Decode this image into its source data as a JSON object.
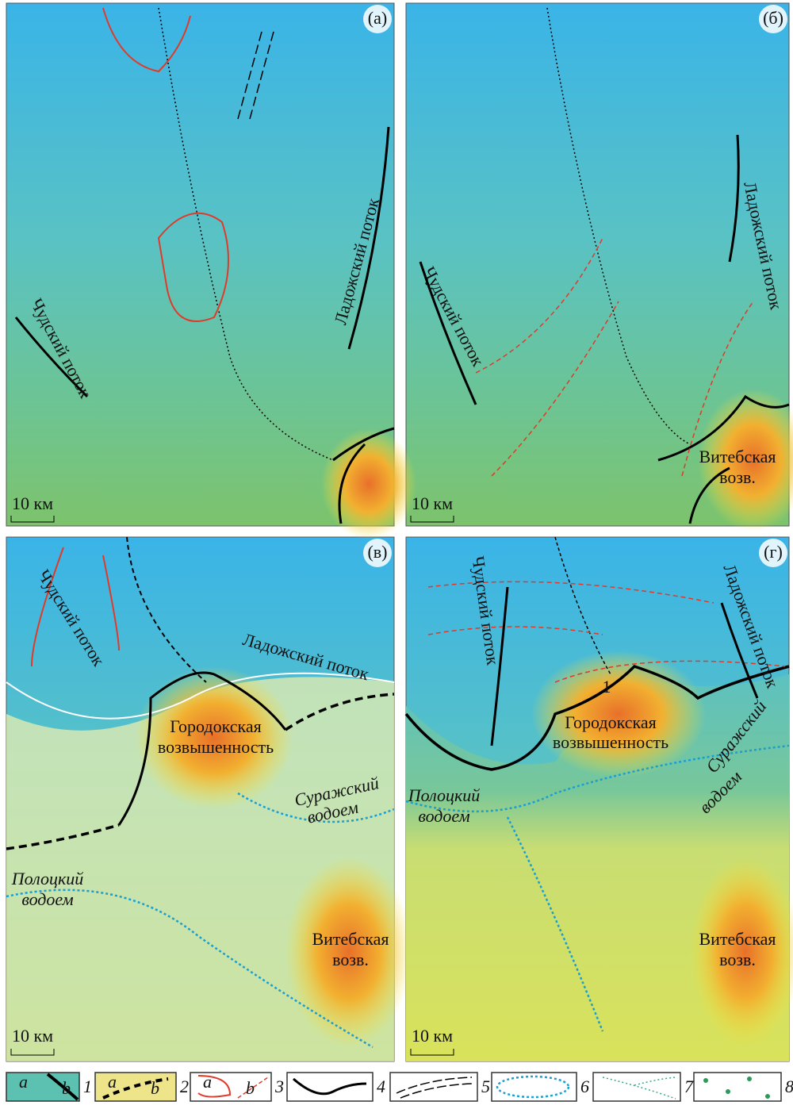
{
  "panels": [
    {
      "label": "(а)",
      "texts": [
        "Чудский поток",
        "Ладожский поток"
      ],
      "scale": "10 км"
    },
    {
      "label": "(б)",
      "texts": [
        "Чудский поток",
        "Ладожский поток",
        "Витебская",
        "возв."
      ],
      "scale": "10 км"
    },
    {
      "label": "(в)",
      "texts": [
        "Чудский поток",
        "Ладожский поток",
        "Городокская",
        "возвышенность",
        "Суражский",
        "водоем",
        "Полоцкий",
        "водоем",
        "Витебская",
        "возв."
      ],
      "scale": "10 км"
    },
    {
      "label": "(г)",
      "texts": [
        "Чудский поток",
        "Ладожский поток",
        "1",
        "Городокская",
        "возвышенность",
        "Суражский",
        "водоем",
        "Полоцкий",
        "водоем",
        "Витебская",
        "возв."
      ],
      "scale": "10 км"
    }
  ],
  "legend": [
    {
      "a": "a",
      "b": "b",
      "number": "1"
    },
    {
      "a": "a",
      "b": "b",
      "number": "2"
    },
    {
      "a": "a",
      "b": "b",
      "number": "3"
    },
    {
      "number": "4"
    },
    {
      "number": "5"
    },
    {
      "number": "6"
    },
    {
      "number": "7"
    },
    {
      "number": "8"
    }
  ]
}
